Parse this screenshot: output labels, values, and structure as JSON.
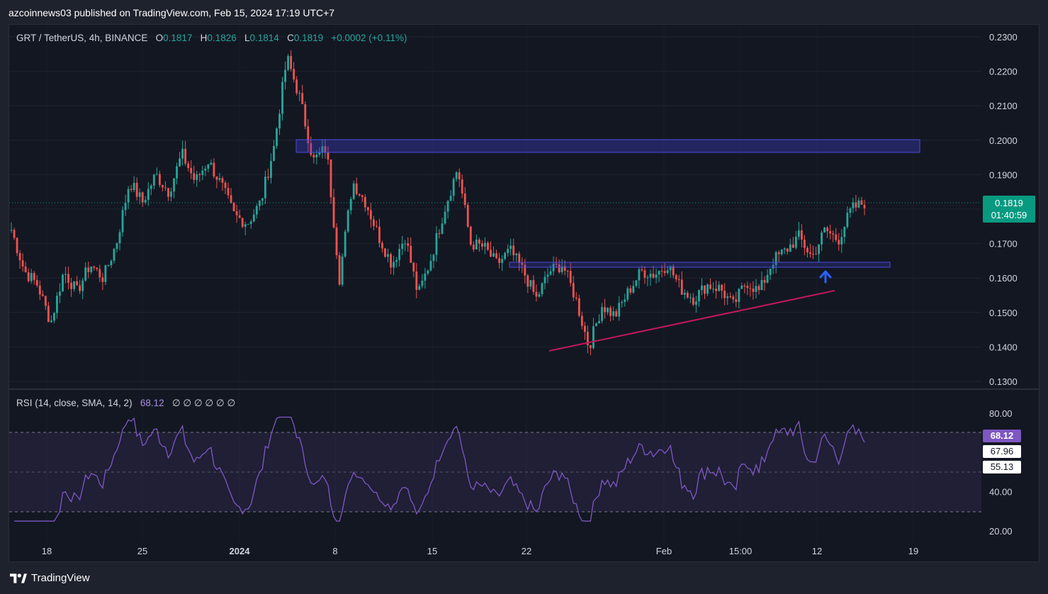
{
  "header": {
    "text": "azcoinnews03 published on TradingView.com, Feb 15, 2024 17:19 UTC+7"
  },
  "legend": {
    "symbol": "GRT / TetherUS, 4h, BINANCE",
    "o_label": "O",
    "o_value": "0.1817",
    "h_label": "H",
    "h_value": "0.1826",
    "l_label": "L",
    "l_value": "0.1814",
    "c_label": "C",
    "c_value": "0.1819",
    "change": "+0.0002 (+0.11%)"
  },
  "price_axis": [
    "0.2300",
    "0.2200",
    "0.2100",
    "0.2000",
    "0.1900",
    "0.1800",
    "0.1700",
    "0.1600",
    "0.1500",
    "0.1400",
    "0.1300"
  ],
  "last_price": {
    "value": "0.1819",
    "countdown": "01:40:59"
  },
  "rsi": {
    "label": "RSI (14, close, SMA, 14, 2)",
    "value": "68.12",
    "placeholders": "∅ ∅ ∅ ∅ ∅ ∅",
    "axis": [
      "80.00",
      "40.00",
      "20.00"
    ],
    "tag_rsi": "68.12",
    "tag_ma": "67.96",
    "tag_mid": "55.13"
  },
  "time_axis": [
    "18",
    "25",
    "2024",
    "8",
    "15",
    "22",
    "Feb",
    "15:00",
    "12",
    "19"
  ],
  "footer": {
    "brand": "TradingView"
  },
  "colors": {
    "up": "#26a69a",
    "down": "#ef5350",
    "rsi": "#7e57c2",
    "zone": "#3f3fd0",
    "trend": "#c2185b"
  },
  "chart_data": {
    "type": "candlestick",
    "symbol": "GRT/USDT",
    "interval": "4h",
    "ylim": [
      0.13,
      0.23
    ],
    "approx_close_path": [
      0.174,
      0.162,
      0.158,
      0.147,
      0.162,
      0.156,
      0.164,
      0.16,
      0.17,
      0.188,
      0.182,
      0.19,
      0.185,
      0.196,
      0.188,
      0.194,
      0.187,
      0.178,
      0.176,
      0.182,
      0.198,
      0.224,
      0.212,
      0.194,
      0.198,
      0.16,
      0.188,
      0.182,
      0.172,
      0.164,
      0.172,
      0.155,
      0.166,
      0.18,
      0.192,
      0.17,
      0.169,
      0.164,
      0.168,
      0.162,
      0.154,
      0.162,
      0.164,
      0.154,
      0.14,
      0.152,
      0.149,
      0.156,
      0.162,
      0.161,
      0.164,
      0.157,
      0.154,
      0.158,
      0.157,
      0.152,
      0.159,
      0.156,
      0.165,
      0.168,
      0.172,
      0.166,
      0.174,
      0.171,
      0.18,
      0.1819
    ],
    "resistance_zone": [
      0.1965,
      0.2005
    ],
    "support_zone": [
      0.1634,
      0.1648
    ],
    "trendline": {
      "from": 0.1388,
      "to": 0.1562
    },
    "rsi_range": [
      20,
      90
    ],
    "rsi_band": [
      30,
      70
    ]
  }
}
